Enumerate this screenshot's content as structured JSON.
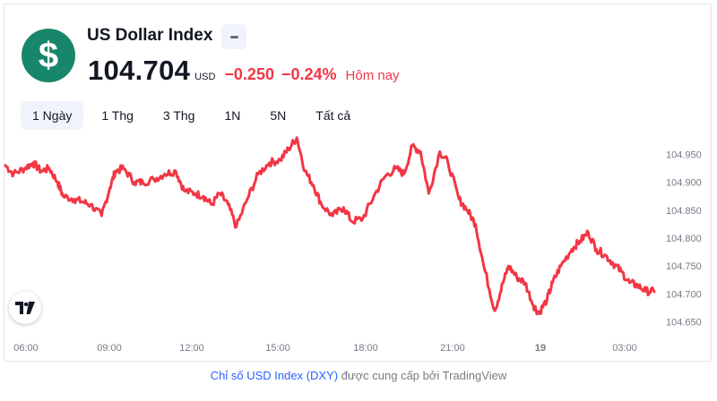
{
  "symbol": {
    "name": "US Dollar Index",
    "logo_glyph": "$",
    "price": "104.704",
    "currency": "USD",
    "change": "−0.250",
    "change_percent": "−0.24%",
    "period": "Hôm nay",
    "accent_color": "#18866a",
    "down_color": "#f23645"
  },
  "tabs": [
    {
      "label": "1 Ngày",
      "active": true
    },
    {
      "label": "1 Thg",
      "active": false
    },
    {
      "label": "3 Thg",
      "active": false
    },
    {
      "label": "1N",
      "active": false
    },
    {
      "label": "5N",
      "active": false
    },
    {
      "label": "Tất cả",
      "active": false
    }
  ],
  "chart_data": {
    "type": "line",
    "x_ticks": [
      "06:00",
      "09:00",
      "12:00",
      "15:00",
      "18:00",
      "21:00",
      "19",
      "03:00"
    ],
    "y_ticks": [
      "104.950",
      "104.900",
      "104.850",
      "104.800",
      "104.750",
      "104.700",
      "104.650"
    ],
    "ylim": [
      104.63,
      104.97
    ],
    "x_range_hours": [
      0,
      22
    ],
    "series": [
      {
        "color": "#f23645",
        "points": [
          [
            0.0,
            104.93
          ],
          [
            0.3,
            104.915
          ],
          [
            0.7,
            104.925
          ],
          [
            1.0,
            104.935
          ],
          [
            1.3,
            104.92
          ],
          [
            1.6,
            104.925
          ],
          [
            1.9,
            104.9
          ],
          [
            2.1,
            104.875
          ],
          [
            2.5,
            104.87
          ],
          [
            2.8,
            104.865
          ],
          [
            3.1,
            104.86
          ],
          [
            3.5,
            104.84
          ],
          [
            3.8,
            104.89
          ],
          [
            4.0,
            104.92
          ],
          [
            4.3,
            104.925
          ],
          [
            4.7,
            104.9
          ],
          [
            5.0,
            104.9
          ],
          [
            5.4,
            104.905
          ],
          [
            5.8,
            104.915
          ],
          [
            6.2,
            104.92
          ],
          [
            6.5,
            104.885
          ],
          [
            6.9,
            104.88
          ],
          [
            7.2,
            104.875
          ],
          [
            7.5,
            104.86
          ],
          [
            7.8,
            104.88
          ],
          [
            8.1,
            104.86
          ],
          [
            8.4,
            104.82
          ],
          [
            8.8,
            104.87
          ],
          [
            9.2,
            104.915
          ],
          [
            9.6,
            104.935
          ],
          [
            10.0,
            104.94
          ],
          [
            10.3,
            104.96
          ],
          [
            10.6,
            104.98
          ],
          [
            10.9,
            104.92
          ],
          [
            11.2,
            104.895
          ],
          [
            11.5,
            104.86
          ],
          [
            11.9,
            104.84
          ],
          [
            12.3,
            104.855
          ],
          [
            12.6,
            104.83
          ],
          [
            13.0,
            104.835
          ],
          [
            13.4,
            104.875
          ],
          [
            13.8,
            104.91
          ],
          [
            14.2,
            104.925
          ],
          [
            14.5,
            104.915
          ],
          [
            14.8,
            104.965
          ],
          [
            15.1,
            104.955
          ],
          [
            15.4,
            104.88
          ],
          [
            15.8,
            104.955
          ],
          [
            16.1,
            104.935
          ],
          [
            16.5,
            104.87
          ],
          [
            16.8,
            104.85
          ],
          [
            17.1,
            104.825
          ],
          [
            17.4,
            104.75
          ],
          [
            17.8,
            104.67
          ],
          [
            18.1,
            104.72
          ],
          [
            18.3,
            104.75
          ],
          [
            18.6,
            104.73
          ],
          [
            18.9,
            104.72
          ],
          [
            19.2,
            104.68
          ],
          [
            19.4,
            104.665
          ],
          [
            19.7,
            104.69
          ],
          [
            19.9,
            104.72
          ],
          [
            20.2,
            104.75
          ],
          [
            20.6,
            104.78
          ],
          [
            20.9,
            104.795
          ],
          [
            21.2,
            104.81
          ],
          [
            21.5,
            104.78
          ],
          [
            21.8,
            104.77
          ],
          [
            22.1,
            104.755
          ],
          [
            22.4,
            104.74
          ],
          [
            22.7,
            104.72
          ],
          [
            23.0,
            104.715
          ],
          [
            23.3,
            104.705
          ],
          [
            23.6,
            104.704
          ]
        ]
      }
    ],
    "grid": false
  },
  "footer": {
    "link_text": "Chỉ số USD Index (DXY)",
    "rest_text": " được cung cấp bởi TradingView"
  }
}
